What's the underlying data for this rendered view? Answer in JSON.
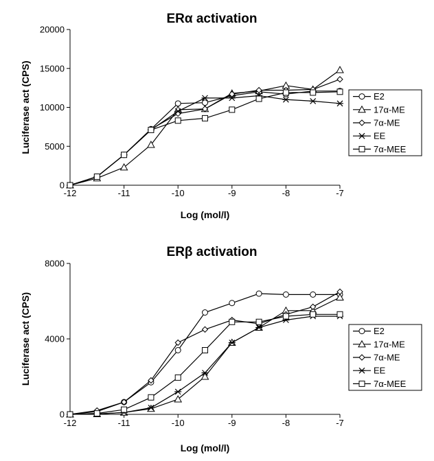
{
  "chart_data": [
    {
      "type": "line",
      "title": "ERα activation",
      "xlabel": "Log (mol/l)",
      "ylabel": "Luciferase act (CPS)",
      "xlim": [
        -12,
        -7
      ],
      "ylim": [
        0,
        20000
      ],
      "x_ticks": [
        -12,
        -11,
        -10,
        -9,
        -8,
        -7
      ],
      "y_ticks": [
        0,
        5000,
        10000,
        15000,
        20000
      ],
      "x": [
        -12,
        -11.5,
        -11,
        -10.5,
        -10,
        -9.5,
        -9,
        -8.5,
        -8,
        -7.5,
        -7
      ],
      "series": [
        {
          "name": "E2",
          "marker": "circle",
          "values": [
            0,
            1100,
            3900,
            7200,
            10500,
            10600,
            11500,
            12000,
            11700,
            12100,
            12100
          ]
        },
        {
          "name": "17α-ME",
          "marker": "triangle",
          "values": [
            0,
            900,
            2300,
            5200,
            9700,
            9800,
            11800,
            12100,
            12800,
            12300,
            14800
          ]
        },
        {
          "name": "7α-ME",
          "marker": "diamond",
          "values": [
            0,
            1100,
            3900,
            7200,
            9200,
            9800,
            11700,
            12200,
            12200,
            12300,
            13600
          ]
        },
        {
          "name": "EE",
          "marker": "star",
          "values": [
            0,
            1100,
            3900,
            7100,
            9500,
            11200,
            11200,
            11500,
            11000,
            10800,
            10500
          ]
        },
        {
          "name": "7α-MEE",
          "marker": "square",
          "values": [
            0,
            1100,
            3900,
            7100,
            8300,
            8600,
            9700,
            11100,
            11900,
            11900,
            12000
          ]
        }
      ]
    },
    {
      "type": "line",
      "title": "ERβ activation",
      "xlabel": "Log (mol/l)",
      "ylabel": "Luciferase act (CPS)",
      "xlim": [
        -12,
        -7
      ],
      "ylim": [
        0,
        8000
      ],
      "x_ticks": [
        -12,
        -11,
        -10,
        -9,
        -8,
        -7
      ],
      "y_ticks": [
        0,
        4000,
        8000
      ],
      "x": [
        -12,
        -11.5,
        -11,
        -10.5,
        -10,
        -9.5,
        -9,
        -8.5,
        -8,
        -7.5,
        -7
      ],
      "series": [
        {
          "name": "E2",
          "marker": "circle",
          "values": [
            0,
            150,
            650,
            1700,
            3400,
            5400,
            5900,
            6400,
            6350,
            6350,
            6350
          ]
        },
        {
          "name": "17α-ME",
          "marker": "triangle",
          "values": [
            0,
            20,
            100,
            300,
            800,
            2000,
            3800,
            4600,
            5500,
            5500,
            6200
          ]
        },
        {
          "name": "7α-ME",
          "marker": "diamond",
          "values": [
            0,
            200,
            650,
            1800,
            3800,
            4500,
            5000,
            4800,
            5300,
            5700,
            6500
          ]
        },
        {
          "name": "EE",
          "marker": "star",
          "values": [
            0,
            20,
            100,
            350,
            1200,
            2200,
            3800,
            4600,
            5000,
            5200,
            5200
          ]
        },
        {
          "name": "7α-MEE",
          "marker": "square",
          "values": [
            0,
            50,
            250,
            900,
            1950,
            3400,
            4900,
            4900,
            5200,
            5300,
            5300
          ]
        }
      ]
    }
  ]
}
